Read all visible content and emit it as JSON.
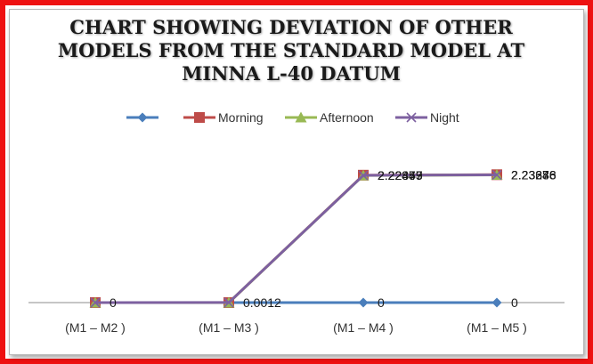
{
  "chart_data": {
    "type": "line",
    "title_lines": [
      "CHART SHOWING DEVIATION OF OTHER",
      "MODELS FROM THE STANDARD MODEL AT",
      "MINNA L-40 DATUM"
    ],
    "categories": [
      "(M1 – M2 )",
      "(M1 – M3 )",
      "(M1 – M4 )",
      "(M1 – M5 )"
    ],
    "legend_position": "top",
    "grid": false,
    "series": [
      {
        "name": "",
        "marker": "diamond",
        "color": "#4a7ebb",
        "values": [
          0,
          0,
          0,
          0
        ],
        "labels": [
          "0",
          "",
          "0",
          "0"
        ]
      },
      {
        "name": "Morning",
        "marker": "square",
        "color": "#be4b48",
        "values": [
          0,
          0,
          2.22859,
          2.23676
        ],
        "labels": [
          "",
          "",
          "2.22859",
          "2.23676"
        ]
      },
      {
        "name": "Afternoon",
        "marker": "triangle",
        "color": "#98b954",
        "values": [
          0,
          0,
          2.22347,
          2.23286
        ],
        "labels": [
          "",
          "",
          "2.22347",
          "2.23286"
        ]
      },
      {
        "name": "Night",
        "marker": "x",
        "color": "#7d60a0",
        "values": [
          0,
          0.0012,
          2.22473,
          2.23348
        ],
        "labels": [
          "",
          "0.0012",
          "2.22473",
          "2.23348"
        ]
      }
    ]
  }
}
